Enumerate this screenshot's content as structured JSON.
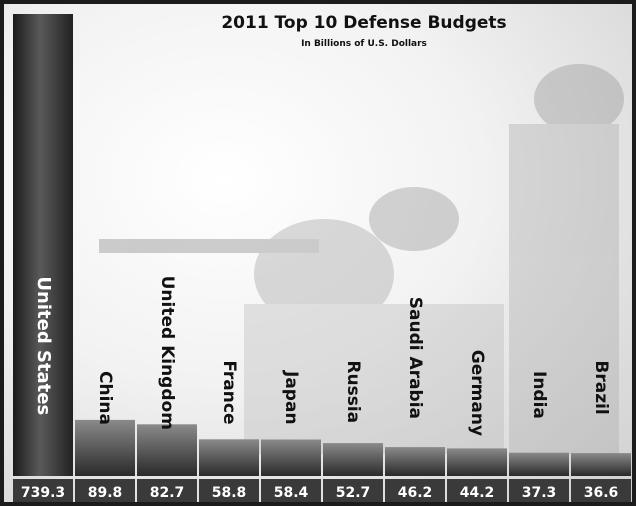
{
  "chart_data": {
    "type": "bar",
    "title": "2011 Top 10 Defense Budgets",
    "subtitle": "In Billions of U.S. Dollars",
    "categories": [
      "United States",
      "China",
      "United Kingdom",
      "France",
      "Japan",
      "Russia",
      "Saudi Arabia",
      "Germany",
      "India",
      "Brazil"
    ],
    "values": [
      739.3,
      89.8,
      82.7,
      58.8,
      58.4,
      52.7,
      46.2,
      44.2,
      37.3,
      36.6
    ],
    "ylim": [
      0,
      739.3
    ],
    "grid": false,
    "legend": "none",
    "bar_color": "#3a3a3a",
    "background_color": "#ffffff"
  }
}
